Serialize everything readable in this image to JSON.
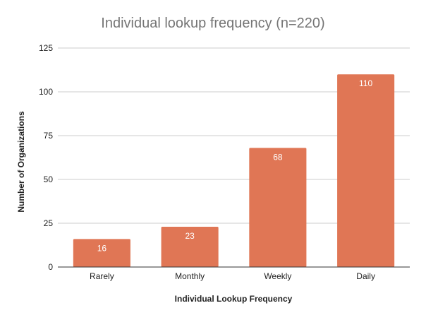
{
  "chart_data": {
    "type": "bar",
    "title": "Individual lookup frequency (n=220)",
    "xlabel": "Individual Lookup Frequency",
    "ylabel": "Number of Organizations",
    "categories": [
      "Rarely",
      "Monthly",
      "Weekly",
      "Daily"
    ],
    "values": [
      16,
      23,
      68,
      110
    ],
    "data_labels": [
      "16",
      "23",
      "68",
      "110"
    ],
    "yticks": [
      0,
      25,
      50,
      75,
      100,
      125
    ],
    "ylim": [
      0,
      125
    ],
    "grid": true,
    "legend": "none",
    "bar_color": "#e07655"
  }
}
